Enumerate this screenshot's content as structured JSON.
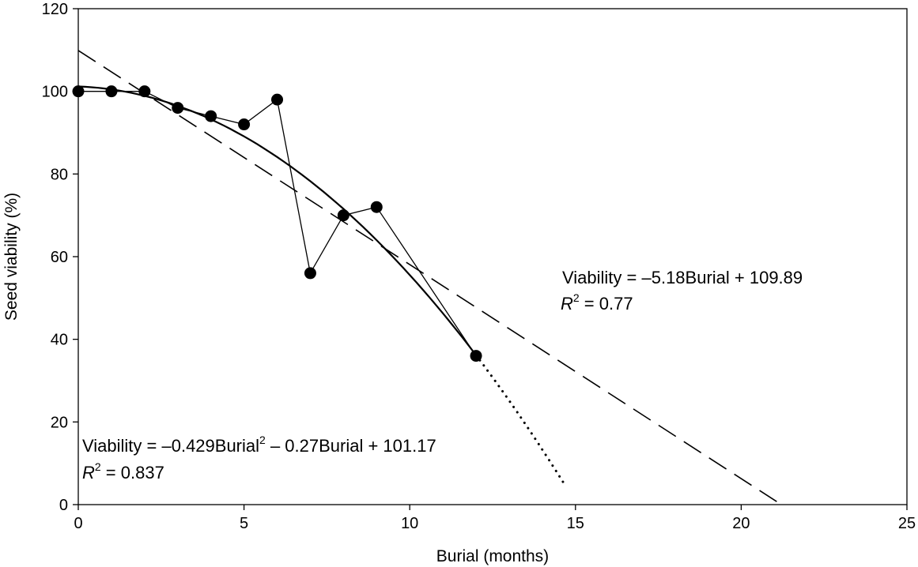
{
  "chart_data": {
    "type": "line",
    "xlabel": "Burial (months)",
    "ylabel": "Seed viability (%)",
    "xlim": [
      0,
      25
    ],
    "ylim": [
      0,
      120
    ],
    "x_ticks": [
      0,
      5,
      10,
      15,
      20,
      25
    ],
    "y_ticks": [
      0,
      20,
      40,
      60,
      80,
      100,
      120
    ],
    "grid": false,
    "series": [
      {
        "style": "solid line with filled circle markers",
        "x": [
          0,
          1,
          2,
          3,
          4,
          5,
          6,
          7,
          8,
          9,
          12
        ],
        "y": [
          100,
          100,
          100,
          96,
          94,
          92,
          98,
          56,
          70,
          72,
          36
        ]
      },
      {
        "style": "dashed line",
        "fit": "linear",
        "slope": -5.18,
        "intercept": 109.89,
        "x_range": [
          0,
          21.2
        ]
      },
      {
        "style": "solid curve, dotted extrapolation beyond x = 12",
        "fit": "quadratic",
        "a": -0.429,
        "b": -0.27,
        "c": 101.17,
        "x_range": [
          0,
          12
        ],
        "extrapolation_x_range": [
          12,
          14.7
        ]
      }
    ],
    "annotations": [
      {
        "id": "linear",
        "line1": {
          "prefix": "Viability = –5.18Burial + 109.89",
          "sup": "",
          "suffix": ""
        },
        "line2": {
          "r": "R",
          "sup": "2",
          "rest": " = 0.77"
        }
      },
      {
        "id": "quadratic",
        "line1": {
          "prefix": "Viability = –0.429Burial",
          "sup": "2",
          "suffix": " – 0.27Burial + 101.17"
        },
        "line2": {
          "r": "R",
          "sup": "2",
          "rest": " = 0.837"
        }
      }
    ]
  }
}
